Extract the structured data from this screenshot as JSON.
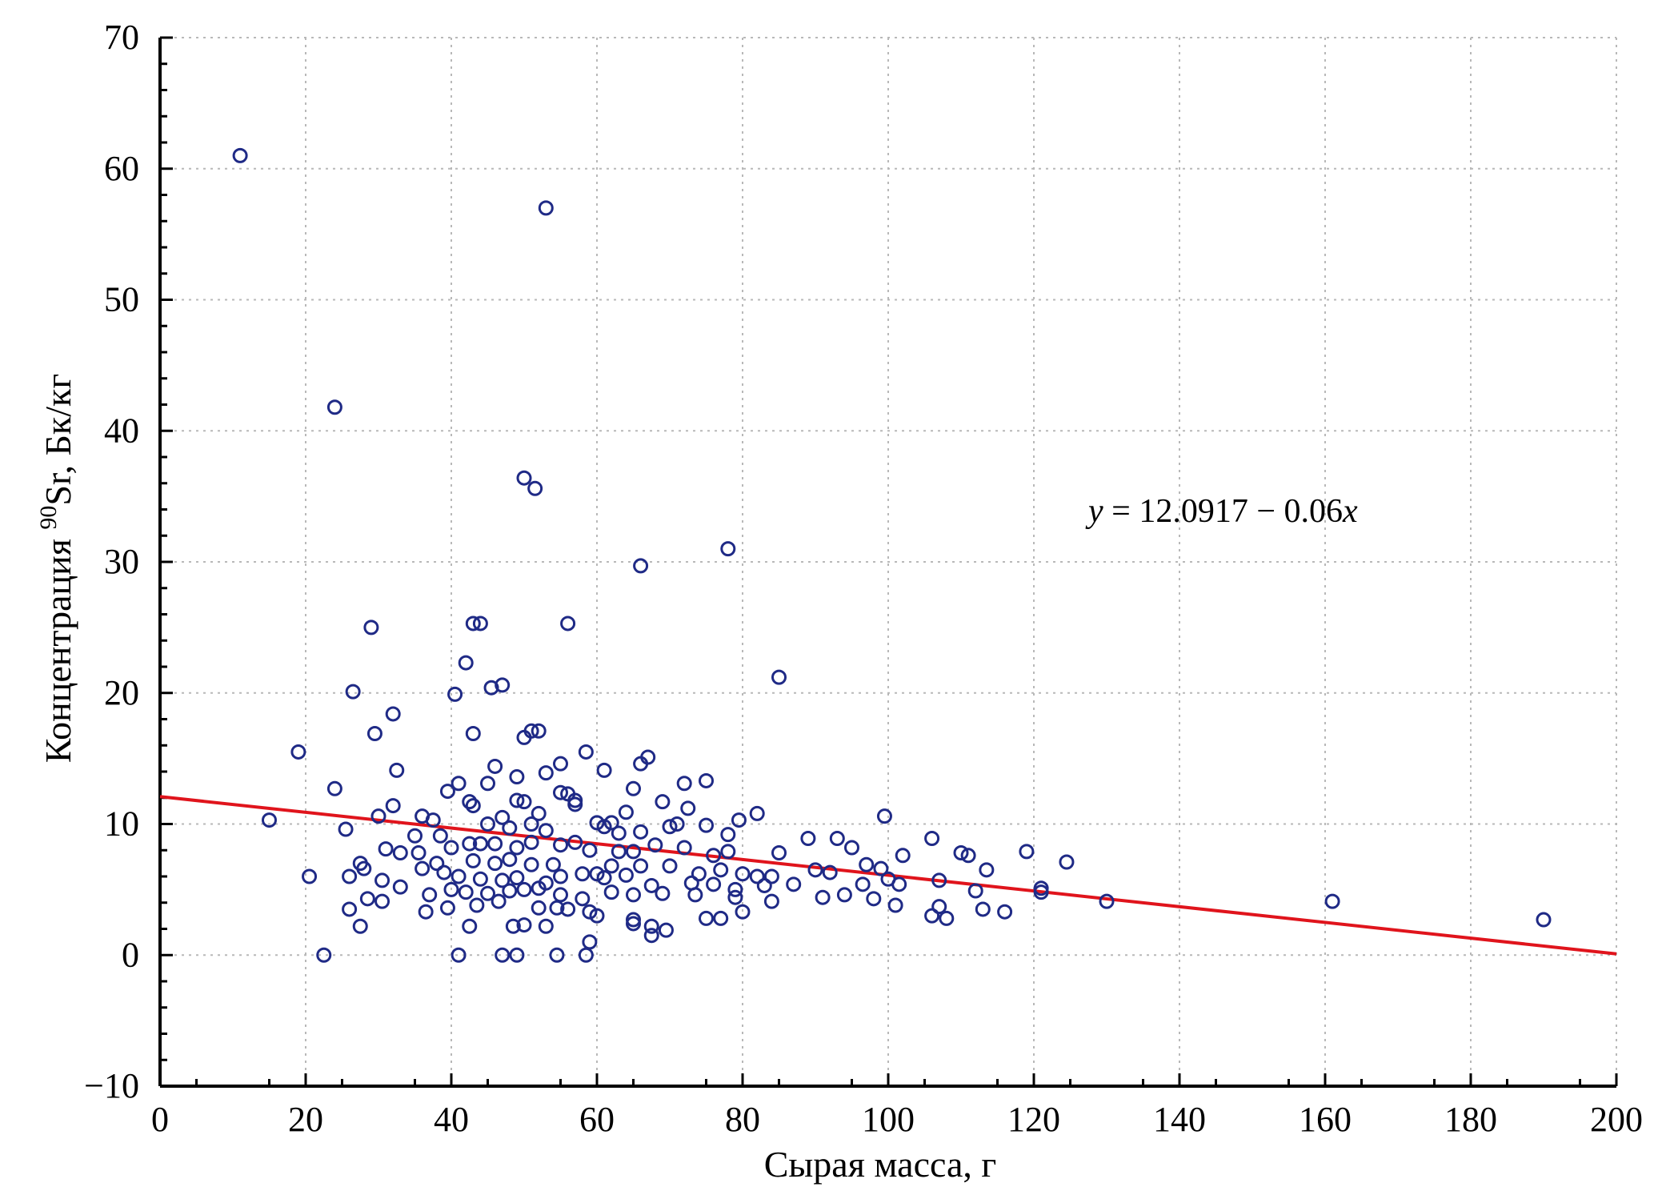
{
  "chart_data": {
    "type": "scatter",
    "xlabel": "Сырая масса, г",
    "ylabel_prefix": "Концентрация ",
    "ylabel_sup": "90",
    "ylabel_suffix": "Sr, Бк/кг",
    "xlim": [
      0,
      200
    ],
    "ylim": [
      -10,
      70
    ],
    "x_ticks": [
      0,
      20,
      40,
      60,
      80,
      100,
      120,
      140,
      160,
      180,
      200
    ],
    "y_ticks": [
      -10,
      0,
      10,
      20,
      30,
      40,
      50,
      60,
      70
    ],
    "x_tick_labels": [
      "0",
      "20",
      "40",
      "60",
      "80",
      "100",
      "120",
      "140",
      "160",
      "180",
      "200"
    ],
    "y_tick_labels": [
      "−10",
      "0",
      "10",
      "20",
      "30",
      "40",
      "50",
      "60",
      "70"
    ],
    "grid": true,
    "colors": {
      "points": "#1f2a86",
      "regression": "#e0141c",
      "grid": "#b8b8b8"
    },
    "regression": {
      "intercept": 12.0917,
      "slope": -0.06,
      "x_range": [
        0,
        200
      ]
    },
    "equation": {
      "y": "y",
      "eq": " = 12.0917 − 0.06",
      "x": "x"
    },
    "points": [
      [
        11,
        61
      ],
      [
        53,
        57
      ],
      [
        24,
        41.8
      ],
      [
        50,
        36.4
      ],
      [
        51.5,
        35.6
      ],
      [
        78,
        31
      ],
      [
        66,
        29.7
      ],
      [
        29,
        25
      ],
      [
        43,
        25.3
      ],
      [
        44,
        25.3
      ],
      [
        56,
        25.3
      ],
      [
        85,
        21.2
      ],
      [
        42,
        22.3
      ],
      [
        47,
        20.6
      ],
      [
        26.5,
        20.1
      ],
      [
        40.5,
        19.9
      ],
      [
        45.5,
        20.4
      ],
      [
        32,
        18.4
      ],
      [
        29.5,
        16.9
      ],
      [
        43,
        16.9
      ],
      [
        50,
        16.6
      ],
      [
        51,
        17.1
      ],
      [
        52,
        17.1
      ],
      [
        19,
        15.5
      ],
      [
        58.5,
        15.5
      ],
      [
        61,
        14.1
      ],
      [
        32.5,
        14.1
      ],
      [
        46,
        14.4
      ],
      [
        49,
        13.6
      ],
      [
        53,
        13.9
      ],
      [
        55,
        14.6
      ],
      [
        66,
        14.6
      ],
      [
        67,
        15.1
      ],
      [
        75,
        13.3
      ],
      [
        24,
        12.7
      ],
      [
        39.5,
        12.5
      ],
      [
        41,
        13.1
      ],
      [
        45,
        13.1
      ],
      [
        65,
        12.7
      ],
      [
        72,
        13.1
      ],
      [
        15,
        10.3
      ],
      [
        25.5,
        9.6
      ],
      [
        30,
        10.6
      ],
      [
        32,
        11.4
      ],
      [
        36,
        10.6
      ],
      [
        37.5,
        10.3
      ],
      [
        42.5,
        11.7
      ],
      [
        43,
        11.4
      ],
      [
        47,
        10.5
      ],
      [
        49,
        11.8
      ],
      [
        50,
        11.7
      ],
      [
        52,
        10.8
      ],
      [
        55,
        12.4
      ],
      [
        56,
        12.3
      ],
      [
        57,
        11.8
      ],
      [
        57,
        11.5
      ],
      [
        60,
        10.1
      ],
      [
        62,
        10.1
      ],
      [
        64,
        10.9
      ],
      [
        69,
        11.7
      ],
      [
        72.5,
        11.2
      ],
      [
        82,
        10.8
      ],
      [
        79.5,
        10.3
      ],
      [
        99.5,
        10.6
      ],
      [
        45,
        10
      ],
      [
        48,
        9.7
      ],
      [
        51,
        10
      ],
      [
        53,
        9.5
      ],
      [
        61,
        9.8
      ],
      [
        63,
        9.3
      ],
      [
        66,
        9.4
      ],
      [
        70,
        9.8
      ],
      [
        71,
        10
      ],
      [
        75,
        9.9
      ],
      [
        78,
        9.2
      ],
      [
        89,
        8.9
      ],
      [
        93,
        8.9
      ],
      [
        106,
        8.9
      ],
      [
        35,
        9.1
      ],
      [
        38.5,
        9.1
      ],
      [
        40,
        8.2
      ],
      [
        42.5,
        8.5
      ],
      [
        44,
        8.5
      ],
      [
        46,
        8.5
      ],
      [
        49,
        8.2
      ],
      [
        51,
        8.6
      ],
      [
        55,
        8.4
      ],
      [
        57,
        8.6
      ],
      [
        59,
        8.0
      ],
      [
        63,
        7.9
      ],
      [
        65,
        7.9
      ],
      [
        68,
        8.4
      ],
      [
        72,
        8.2
      ],
      [
        76,
        7.6
      ],
      [
        78,
        7.9
      ],
      [
        85,
        7.8
      ],
      [
        95,
        8.2
      ],
      [
        110,
        7.8
      ],
      [
        111,
        7.6
      ],
      [
        119,
        7.9
      ],
      [
        31,
        8.1
      ],
      [
        33,
        7.8
      ],
      [
        35.5,
        7.8
      ],
      [
        38,
        7.0
      ],
      [
        43,
        7.2
      ],
      [
        46,
        7.0
      ],
      [
        48,
        7.3
      ],
      [
        51,
        6.9
      ],
      [
        54,
        6.9
      ],
      [
        60,
        6.2
      ],
      [
        62,
        6.8
      ],
      [
        66,
        6.8
      ],
      [
        70,
        6.8
      ],
      [
        74,
        6.2
      ],
      [
        77,
        6.5
      ],
      [
        80,
        6.2
      ],
      [
        82,
        6.0
      ],
      [
        84,
        6.0
      ],
      [
        90,
        6.5
      ],
      [
        92,
        6.3
      ],
      [
        97,
        6.9
      ],
      [
        99,
        6.6
      ],
      [
        102,
        7.6
      ],
      [
        113.5,
        6.5
      ],
      [
        124.5,
        7.1
      ],
      [
        27.5,
        7.0
      ],
      [
        28,
        6.6
      ],
      [
        36,
        6.6
      ],
      [
        39,
        6.3
      ],
      [
        41,
        6.0
      ],
      [
        44,
        5.8
      ],
      [
        47,
        5.7
      ],
      [
        49,
        5.9
      ],
      [
        53,
        5.5
      ],
      [
        55,
        6.0
      ],
      [
        58,
        6.2
      ],
      [
        61,
        5.9
      ],
      [
        64,
        6.1
      ],
      [
        67.5,
        5.3
      ],
      [
        73,
        5.5
      ],
      [
        76,
        5.4
      ],
      [
        79,
        5.0
      ],
      [
        83,
        5.3
      ],
      [
        87,
        5.4
      ],
      [
        96.5,
        5.4
      ],
      [
        100,
        5.8
      ],
      [
        101.5,
        5.4
      ],
      [
        107,
        5.7
      ],
      [
        112,
        4.9
      ],
      [
        121,
        5.1
      ],
      [
        20.5,
        6.0
      ],
      [
        26,
        6.0
      ],
      [
        30.5,
        5.7
      ],
      [
        33,
        5.2
      ],
      [
        37,
        4.6
      ],
      [
        40,
        5.0
      ],
      [
        42,
        4.8
      ],
      [
        45,
        4.7
      ],
      [
        48,
        4.9
      ],
      [
        50,
        5.0
      ],
      [
        52,
        5.1
      ],
      [
        55,
        4.6
      ],
      [
        58,
        4.3
      ],
      [
        62,
        4.8
      ],
      [
        65,
        4.6
      ],
      [
        69,
        4.7
      ],
      [
        73.5,
        4.6
      ],
      [
        79,
        4.4
      ],
      [
        84,
        4.1
      ],
      [
        91,
        4.4
      ],
      [
        94,
        4.6
      ],
      [
        98,
        4.3
      ],
      [
        101,
        3.8
      ],
      [
        121,
        4.8
      ],
      [
        130,
        4.1
      ],
      [
        161,
        4.1
      ],
      [
        28.5,
        4.3
      ],
      [
        30.5,
        4.1
      ],
      [
        36.5,
        3.3
      ],
      [
        39.5,
        3.6
      ],
      [
        43.5,
        3.8
      ],
      [
        46.5,
        4.1
      ],
      [
        52,
        3.6
      ],
      [
        54.5,
        3.6
      ],
      [
        56,
        3.5
      ],
      [
        59,
        3.3
      ],
      [
        60,
        3.0
      ],
      [
        65,
        2.4
      ],
      [
        75,
        2.8
      ],
      [
        77,
        2.8
      ],
      [
        80,
        3.3
      ],
      [
        106,
        3.0
      ],
      [
        107,
        3.7
      ],
      [
        108,
        2.8
      ],
      [
        113,
        3.5
      ],
      [
        116,
        3.3
      ],
      [
        190,
        2.7
      ],
      [
        26,
        3.5
      ],
      [
        27.5,
        2.2
      ],
      [
        42.5,
        2.2
      ],
      [
        48.5,
        2.2
      ],
      [
        50,
        2.3
      ],
      [
        53,
        2.2
      ],
      [
        65,
        2.7
      ],
      [
        67.5,
        2.2
      ],
      [
        69.5,
        1.9
      ],
      [
        67.5,
        1.5
      ],
      [
        59,
        1.0
      ],
      [
        22.5,
        0
      ],
      [
        41,
        0
      ],
      [
        47,
        0
      ],
      [
        49,
        0
      ],
      [
        54.5,
        0
      ],
      [
        58.5,
        0
      ]
    ]
  }
}
